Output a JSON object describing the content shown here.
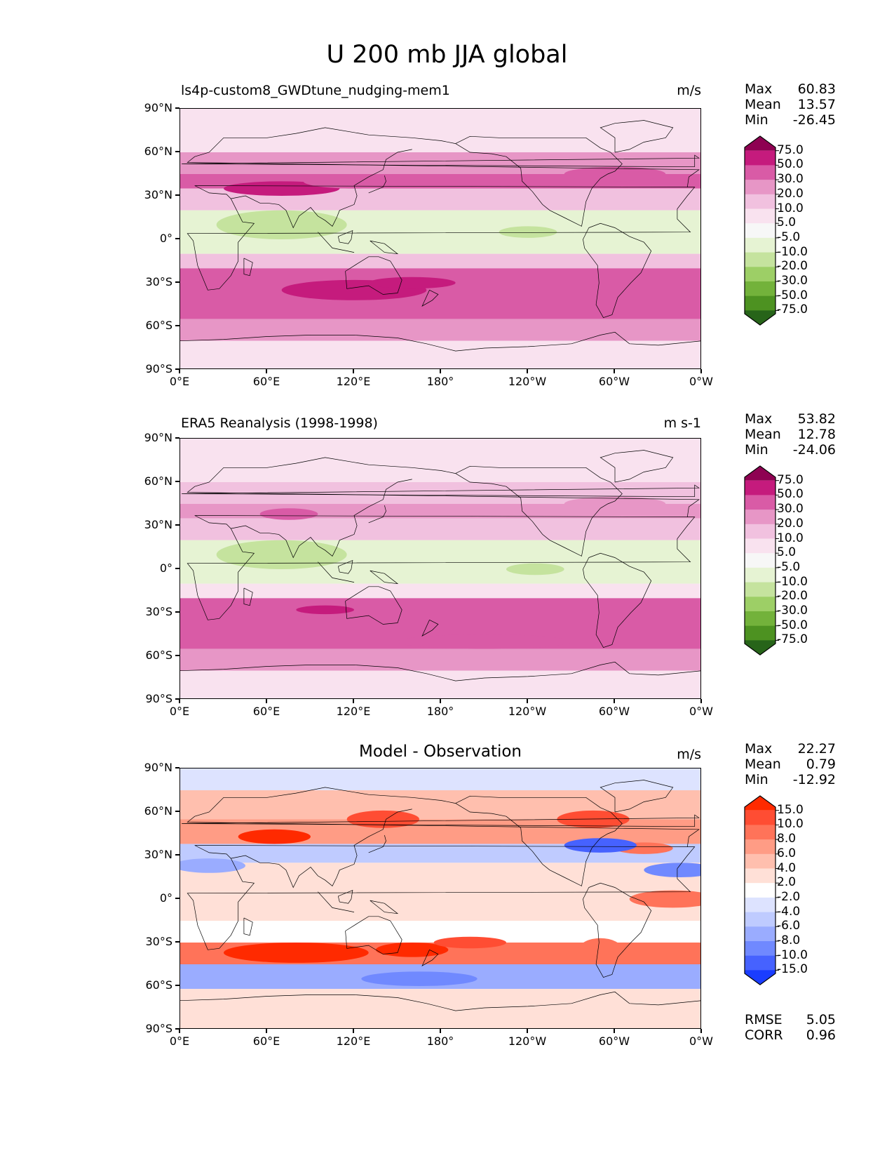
{
  "figure": {
    "title": "U 200 mb JJA global"
  },
  "axes": {
    "y_ticks": [
      "90°N",
      "60°N",
      "30°N",
      "0°",
      "30°S",
      "60°S",
      "90°S"
    ],
    "x_ticks": [
      "0°E",
      "60°E",
      "120°E",
      "180°",
      "120°W",
      "60°W",
      "0°W"
    ]
  },
  "panels": [
    {
      "title": "ls4p-custom8_GWDtune_nudging-mem1",
      "units": "m/s",
      "stats": [
        {
          "label": "Max",
          "value": "60.83"
        },
        {
          "label": "Mean",
          "value": "13.57"
        },
        {
          "label": "Min",
          "value": "-26.45"
        }
      ],
      "colorbar": {
        "levels": [
          "75.0",
          "50.0",
          "30.0",
          "20.0",
          "10.0",
          "5.0",
          "-5.0",
          "-10.0",
          "-20.0",
          "-30.0",
          "-50.0",
          "-75.0"
        ],
        "colors": [
          "#8e0152",
          "#c51b7d",
          "#d95ba6",
          "#e796c6",
          "#f1c1df",
          "#f9e2ef",
          "#f7f7f7",
          "#e6f3d3",
          "#c5e39e",
          "#9dcf66",
          "#73b23b",
          "#4d9221",
          "#276419"
        ]
      }
    },
    {
      "title": "ERA5 Reanalysis (1998-1998)",
      "units": "m s-1",
      "stats": [
        {
          "label": "Max",
          "value": "53.82"
        },
        {
          "label": "Mean",
          "value": "12.78"
        },
        {
          "label": "Min",
          "value": "-24.06"
        }
      ],
      "colorbar": {
        "levels": [
          "75.0",
          "50.0",
          "30.0",
          "20.0",
          "10.0",
          "5.0",
          "-5.0",
          "-10.0",
          "-20.0",
          "-30.0",
          "-50.0",
          "-75.0"
        ],
        "colors": [
          "#8e0152",
          "#c51b7d",
          "#d95ba6",
          "#e796c6",
          "#f1c1df",
          "#f9e2ef",
          "#f7f7f7",
          "#e6f3d3",
          "#c5e39e",
          "#9dcf66",
          "#73b23b",
          "#4d9221",
          "#276419"
        ]
      }
    },
    {
      "title": "Model - Observation",
      "units": "m/s",
      "stats": [
        {
          "label": "Max",
          "value": "22.27"
        },
        {
          "label": "Mean",
          "value": "0.79"
        },
        {
          "label": "Min",
          "value": "-12.92"
        }
      ],
      "metrics": [
        {
          "label": "RMSE",
          "value": "5.05"
        },
        {
          "label": "CORR",
          "value": "0.96"
        }
      ],
      "colorbar": {
        "levels": [
          "15.0",
          "10.0",
          "8.0",
          "6.0",
          "4.0",
          "2.0",
          "-2.0",
          "-4.0",
          "-6.0",
          "-8.0",
          "-10.0",
          "-15.0"
        ],
        "colors": [
          "#ff2a00",
          "#ff4d33",
          "#ff7359",
          "#ff9c85",
          "#ffbfae",
          "#ffe0d7",
          "#ffffff",
          "#dde3ff",
          "#bfcbff",
          "#9aacff",
          "#7089ff",
          "#4662ff",
          "#1a3dff"
        ]
      }
    }
  ],
  "chart_data": [
    {
      "type": "heatmap",
      "title": "ls4p-custom8_GWDtune_nudging-mem1",
      "variable": "U 200 mb JJA",
      "units": "m/s",
      "xlim": [
        0,
        360
      ],
      "ylim": [
        -90,
        90
      ],
      "bands": [
        {
          "lat": [
            60,
            90
          ],
          "level": 5
        },
        {
          "lat": [
            45,
            60
          ],
          "level": 20
        },
        {
          "lat": [
            35,
            45
          ],
          "level": 30
        },
        {
          "lat": [
            20,
            35
          ],
          "level": 10
        },
        {
          "lat": [
            -10,
            20
          ],
          "level": -10
        },
        {
          "lat": [
            -20,
            -10
          ],
          "level": 10
        },
        {
          "lat": [
            -55,
            -20
          ],
          "level": 30
        },
        {
          "lat": [
            -70,
            -55
          ],
          "level": 20
        },
        {
          "lat": [
            -90,
            -70
          ],
          "level": 5
        }
      ]
    },
    {
      "type": "heatmap",
      "title": "ERA5 Reanalysis (1998-1998)",
      "variable": "U 200 mb JJA",
      "units": "m s-1",
      "xlim": [
        0,
        360
      ],
      "ylim": [
        -90,
        90
      ],
      "bands": [
        {
          "lat": [
            60,
            90
          ],
          "level": 5
        },
        {
          "lat": [
            45,
            60
          ],
          "level": 10
        },
        {
          "lat": [
            35,
            45
          ],
          "level": 20
        },
        {
          "lat": [
            20,
            35
          ],
          "level": 10
        },
        {
          "lat": [
            -10,
            20
          ],
          "level": -10
        },
        {
          "lat": [
            -20,
            -10
          ],
          "level": 5
        },
        {
          "lat": [
            -55,
            -20
          ],
          "level": 30
        },
        {
          "lat": [
            -70,
            -55
          ],
          "level": 20
        },
        {
          "lat": [
            -90,
            -70
          ],
          "level": 5
        }
      ]
    },
    {
      "type": "heatmap",
      "title": "Model - Observation",
      "variable": "U 200 mb JJA difference",
      "units": "m/s",
      "xlim": [
        0,
        360
      ],
      "ylim": [
        -90,
        90
      ],
      "bands": [
        {
          "lat": [
            75,
            90
          ],
          "level": -4
        },
        {
          "lat": [
            55,
            75
          ],
          "level": 4
        },
        {
          "lat": [
            38,
            55
          ],
          "level": 6
        },
        {
          "lat": [
            25,
            38
          ],
          "level": -6
        },
        {
          "lat": [
            -15,
            25
          ],
          "level": 2
        },
        {
          "lat": [
            -30,
            -15
          ],
          "level": -2
        },
        {
          "lat": [
            -45,
            -30
          ],
          "level": 8
        },
        {
          "lat": [
            -62,
            -45
          ],
          "level": -8
        },
        {
          "lat": [
            -90,
            -62
          ],
          "level": 2
        }
      ]
    }
  ]
}
